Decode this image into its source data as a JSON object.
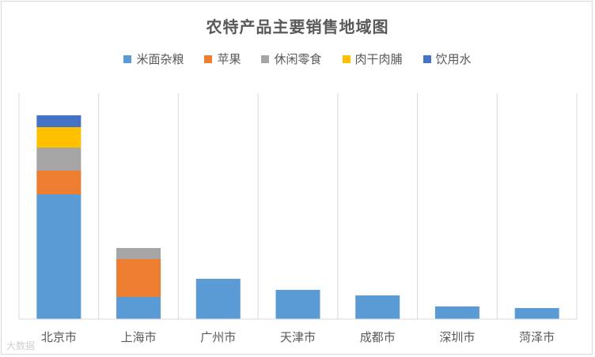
{
  "chart_data": {
    "type": "bar",
    "stacked": true,
    "title": "农特产品主要销售地域图",
    "categories": [
      "北京市",
      "上海市",
      "广州市",
      "天津市",
      "成都市",
      "深圳市",
      "菏泽市"
    ],
    "series": [
      {
        "name": "米面杂粮",
        "color": "#5B9BD5",
        "values": [
          158,
          28,
          51,
          37,
          30,
          16,
          14
        ]
      },
      {
        "name": "苹果",
        "color": "#ED7D31",
        "values": [
          30,
          48,
          0,
          0,
          0,
          0,
          0
        ]
      },
      {
        "name": "休闲零食",
        "color": "#A5A5A5",
        "values": [
          29,
          14,
          0,
          0,
          0,
          0,
          0
        ]
      },
      {
        "name": "肉干肉脯",
        "color": "#FFC000",
        "values": [
          26,
          0,
          0,
          0,
          0,
          0,
          0
        ]
      },
      {
        "name": "饮用水",
        "color": "#4472C4",
        "values": [
          15,
          0,
          0,
          0,
          0,
          0,
          0
        ]
      }
    ],
    "ylim": [
      0,
      286
    ],
    "grid": "vertical-category-separators",
    "legend": "top-center"
  },
  "watermark": "大数据"
}
